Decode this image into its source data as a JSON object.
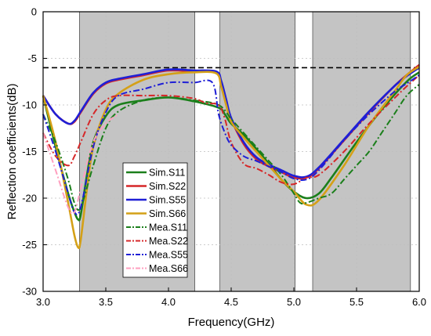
{
  "chart_data": {
    "type": "line",
    "xlabel": "Frequency(GHz)",
    "ylabel": "Reflection coefficients(dB)",
    "xlim": [
      3.0,
      6.0
    ],
    "ylim": [
      -30,
      0
    ],
    "xticks": [
      3.0,
      3.5,
      4.0,
      4.5,
      5.0,
      5.5,
      6.0
    ],
    "xtick_labels": [
      "3.0",
      "3.5",
      "4.0",
      "4.5",
      "5.0",
      "5.5",
      "6.0"
    ],
    "yticks": [
      0,
      -5,
      -10,
      -15,
      -20,
      -25,
      -30
    ],
    "ytick_labels": [
      "0",
      "-5",
      "-10",
      "-15",
      "-20",
      "-25",
      "-30"
    ],
    "grid": true,
    "legend_position": "center-left",
    "shaded_bands": [
      [
        3.29,
        4.21
      ],
      [
        4.41,
        5.01
      ],
      [
        5.15,
        5.93
      ]
    ],
    "reference_line": {
      "y": -6,
      "style": "dashed",
      "color": "#000000"
    },
    "series": [
      {
        "name": "Sim.S11",
        "color": "#1b7f1b",
        "dash": "solid",
        "x": [
          3.0,
          3.1,
          3.2,
          3.25,
          3.28,
          3.3,
          3.35,
          3.4,
          3.5,
          3.6,
          3.8,
          4.0,
          4.2,
          4.4,
          4.45,
          4.5,
          4.6,
          4.7,
          4.8,
          4.9,
          5.0,
          5.1,
          5.2,
          5.3,
          5.5,
          5.7,
          5.9,
          6.0
        ],
        "y": [
          -9.0,
          -14.5,
          -19.5,
          -21.5,
          -22.3,
          -21.8,
          -17.5,
          -14.0,
          -11.2,
          -10.0,
          -9.5,
          -9.2,
          -9.6,
          -10.3,
          -11.0,
          -12.0,
          -13.2,
          -14.7,
          -16.3,
          -18.0,
          -19.3,
          -20.0,
          -19.5,
          -17.8,
          -14.0,
          -10.5,
          -7.5,
          -6.5
        ]
      },
      {
        "name": "Sim.S22",
        "color": "#d62728",
        "dash": "solid",
        "x": [
          3.0,
          3.1,
          3.2,
          3.25,
          3.3,
          3.4,
          3.5,
          3.6,
          3.8,
          4.0,
          4.2,
          4.38,
          4.42,
          4.46,
          4.5,
          4.6,
          4.7,
          4.8,
          4.9,
          5.0,
          5.1,
          5.2,
          5.4,
          5.6,
          5.8,
          5.9,
          6.0
        ],
        "y": [
          -9.0,
          -11.0,
          -12.0,
          -11.8,
          -10.8,
          -8.8,
          -7.7,
          -7.3,
          -6.8,
          -6.3,
          -6.4,
          -6.5,
          -7.5,
          -9.5,
          -11.5,
          -14.2,
          -15.8,
          -16.6,
          -17.2,
          -17.8,
          -17.8,
          -16.8,
          -13.8,
          -10.8,
          -8.0,
          -6.8,
          -5.7
        ]
      },
      {
        "name": "Sim.S55",
        "color": "#1f1fd6",
        "dash": "solid",
        "x": [
          3.0,
          3.1,
          3.2,
          3.25,
          3.3,
          3.4,
          3.5,
          3.6,
          3.8,
          4.0,
          4.2,
          4.38,
          4.42,
          4.46,
          4.5,
          4.6,
          4.7,
          4.8,
          4.9,
          5.0,
          5.1,
          5.2,
          5.4,
          5.6,
          5.8,
          5.9,
          6.0
        ],
        "y": [
          -9.0,
          -11.0,
          -12.0,
          -11.7,
          -10.7,
          -8.7,
          -7.6,
          -7.2,
          -6.7,
          -6.2,
          -6.3,
          -6.4,
          -7.4,
          -9.4,
          -11.4,
          -14.0,
          -15.6,
          -16.4,
          -17.0,
          -17.6,
          -17.7,
          -16.7,
          -13.7,
          -10.7,
          -8.0,
          -6.9,
          -6.0
        ]
      },
      {
        "name": "Sim.S66",
        "color": "#d4a017",
        "dash": "solid",
        "x": [
          3.0,
          3.1,
          3.2,
          3.25,
          3.28,
          3.3,
          3.35,
          3.4,
          3.5,
          3.6,
          3.8,
          4.0,
          4.2,
          4.38,
          4.42,
          4.46,
          4.5,
          4.6,
          4.7,
          4.8,
          4.9,
          5.0,
          5.1,
          5.2,
          5.4,
          5.6,
          5.8,
          5.9,
          6.0
        ],
        "y": [
          -9.0,
          -14.0,
          -20.5,
          -24.0,
          -25.3,
          -24.5,
          -19.0,
          -14.5,
          -10.5,
          -8.8,
          -7.3,
          -6.7,
          -6.5,
          -6.6,
          -8.0,
          -10.0,
          -11.8,
          -13.5,
          -15.0,
          -16.5,
          -18.0,
          -19.3,
          -20.7,
          -20.2,
          -16.5,
          -12.2,
          -8.6,
          -6.8,
          -5.9
        ]
      },
      {
        "name": "Mea.S11",
        "color": "#1b7f1b",
        "dash": "dashdot",
        "x": [
          3.0,
          3.1,
          3.2,
          3.25,
          3.3,
          3.4,
          3.5,
          3.6,
          3.8,
          4.0,
          4.2,
          4.4,
          4.5,
          4.6,
          4.7,
          4.8,
          4.9,
          5.0,
          5.05,
          5.1,
          5.2,
          5.3,
          5.4,
          5.5,
          5.6,
          5.7,
          5.8,
          5.9,
          6.0
        ],
        "y": [
          -11.0,
          -14.0,
          -18.0,
          -20.5,
          -21.0,
          -16.5,
          -12.5,
          -10.7,
          -9.5,
          -9.2,
          -9.5,
          -10.0,
          -11.5,
          -13.0,
          -14.5,
          -16.0,
          -17.5,
          -19.5,
          -20.5,
          -20.5,
          -20.0,
          -19.5,
          -18.0,
          -16.5,
          -15.0,
          -13.0,
          -11.0,
          -9.0,
          -7.8
        ]
      },
      {
        "name": "Mea.S22",
        "color": "#d62728",
        "dash": "dashdot",
        "x": [
          3.0,
          3.1,
          3.2,
          3.25,
          3.3,
          3.4,
          3.5,
          3.6,
          3.8,
          4.0,
          4.2,
          4.3,
          4.4,
          4.45,
          4.5,
          4.6,
          4.7,
          4.8,
          4.9,
          5.0,
          5.1,
          5.2,
          5.4,
          5.6,
          5.8,
          5.9,
          6.0
        ],
        "y": [
          -13.0,
          -15.5,
          -16.5,
          -15.5,
          -14.0,
          -11.0,
          -9.5,
          -9.0,
          -9.0,
          -9.0,
          -9.3,
          -9.8,
          -10.0,
          -11.5,
          -14.0,
          -16.3,
          -16.8,
          -17.5,
          -18.3,
          -18.5,
          -17.8,
          -17.5,
          -15.0,
          -12.0,
          -9.3,
          -8.0,
          -6.8
        ]
      },
      {
        "name": "Mea.S55",
        "color": "#1f1fd6",
        "dash": "dashdot",
        "x": [
          3.0,
          3.1,
          3.2,
          3.25,
          3.3,
          3.4,
          3.5,
          3.6,
          3.8,
          4.0,
          4.2,
          4.35,
          4.4,
          4.45,
          4.5,
          4.6,
          4.7,
          4.8,
          4.9,
          5.0,
          5.1,
          5.2,
          5.4,
          5.6,
          5.8,
          5.9,
          6.0
        ],
        "y": [
          -11.0,
          -15.0,
          -19.5,
          -21.5,
          -21.0,
          -14.5,
          -10.8,
          -9.0,
          -8.3,
          -7.6,
          -7.6,
          -7.6,
          -11.0,
          -13.0,
          -14.3,
          -15.5,
          -16.0,
          -16.6,
          -17.2,
          -17.9,
          -18.0,
          -17.0,
          -13.8,
          -11.0,
          -8.6,
          -7.7,
          -6.8
        ]
      },
      {
        "name": "Mea.S66",
        "color": "#ff9fbf",
        "dash": "dashdot",
        "x": [
          3.0,
          3.1,
          3.2,
          3.25,
          3.3,
          3.4,
          3.5,
          3.6
        ],
        "y": [
          -13.0,
          -17.0,
          -21.0,
          -21.5,
          -19.0,
          -14.0,
          -12.0,
          -11.0
        ]
      }
    ]
  }
}
